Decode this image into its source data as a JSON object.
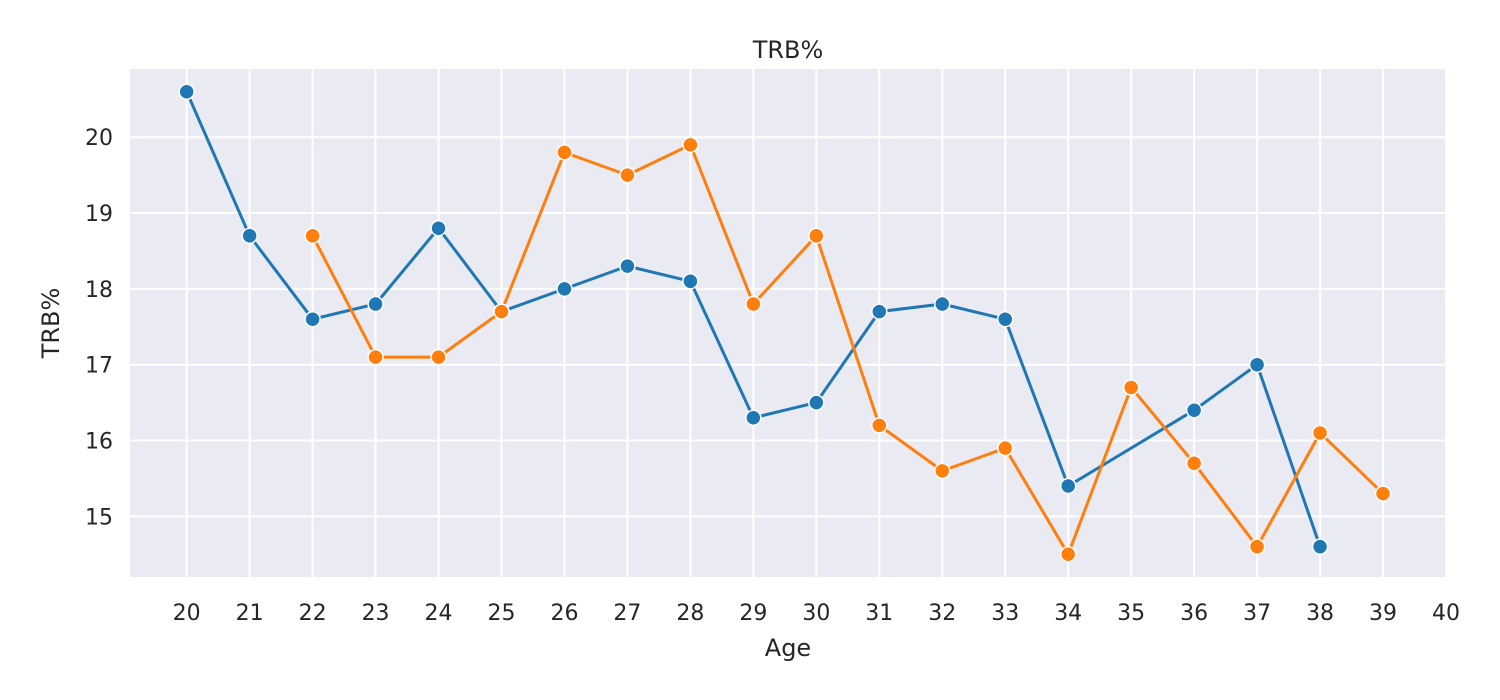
{
  "chart_data": {
    "type": "line",
    "title": "TRB%",
    "xlabel": "Age",
    "ylabel": "TRB%",
    "x_ticks": [
      20,
      21,
      22,
      23,
      24,
      25,
      26,
      27,
      28,
      29,
      30,
      31,
      32,
      33,
      34,
      35,
      36,
      37,
      38,
      39,
      40
    ],
    "y_ticks": [
      15,
      16,
      17,
      18,
      19,
      20
    ],
    "xlim": [
      19.1,
      40.0
    ],
    "ylim": [
      14.2,
      20.9
    ],
    "grid": true,
    "background": "#eaeaf2",
    "series": [
      {
        "color": "#1f77b4",
        "points": [
          [
            20,
            20.6
          ],
          [
            21,
            18.7
          ],
          [
            22,
            17.6
          ],
          [
            23,
            17.8
          ],
          [
            24,
            18.8
          ],
          [
            25,
            17.7
          ],
          [
            26,
            18.0
          ],
          [
            27,
            18.3
          ],
          [
            28,
            18.1
          ],
          [
            29,
            16.3
          ],
          [
            30,
            16.5
          ],
          [
            31,
            17.7
          ],
          [
            32,
            17.8
          ],
          [
            33,
            17.6
          ],
          [
            34,
            15.4
          ],
          [
            36,
            16.4
          ],
          [
            37,
            17.0
          ],
          [
            38,
            14.6
          ]
        ]
      },
      {
        "color": "#ff7f0e",
        "points": [
          [
            22,
            18.7
          ],
          [
            23,
            17.1
          ],
          [
            24,
            17.1
          ],
          [
            25,
            17.7
          ],
          [
            26,
            19.8
          ],
          [
            27,
            19.5
          ],
          [
            28,
            19.9
          ],
          [
            29,
            17.8
          ],
          [
            30,
            18.7
          ],
          [
            31,
            16.2
          ],
          [
            32,
            15.6
          ],
          [
            33,
            15.9
          ],
          [
            34,
            14.5
          ],
          [
            35,
            16.7
          ],
          [
            36,
            15.7
          ],
          [
            37,
            14.6
          ],
          [
            38,
            16.1
          ],
          [
            39,
            15.3
          ]
        ]
      }
    ]
  }
}
